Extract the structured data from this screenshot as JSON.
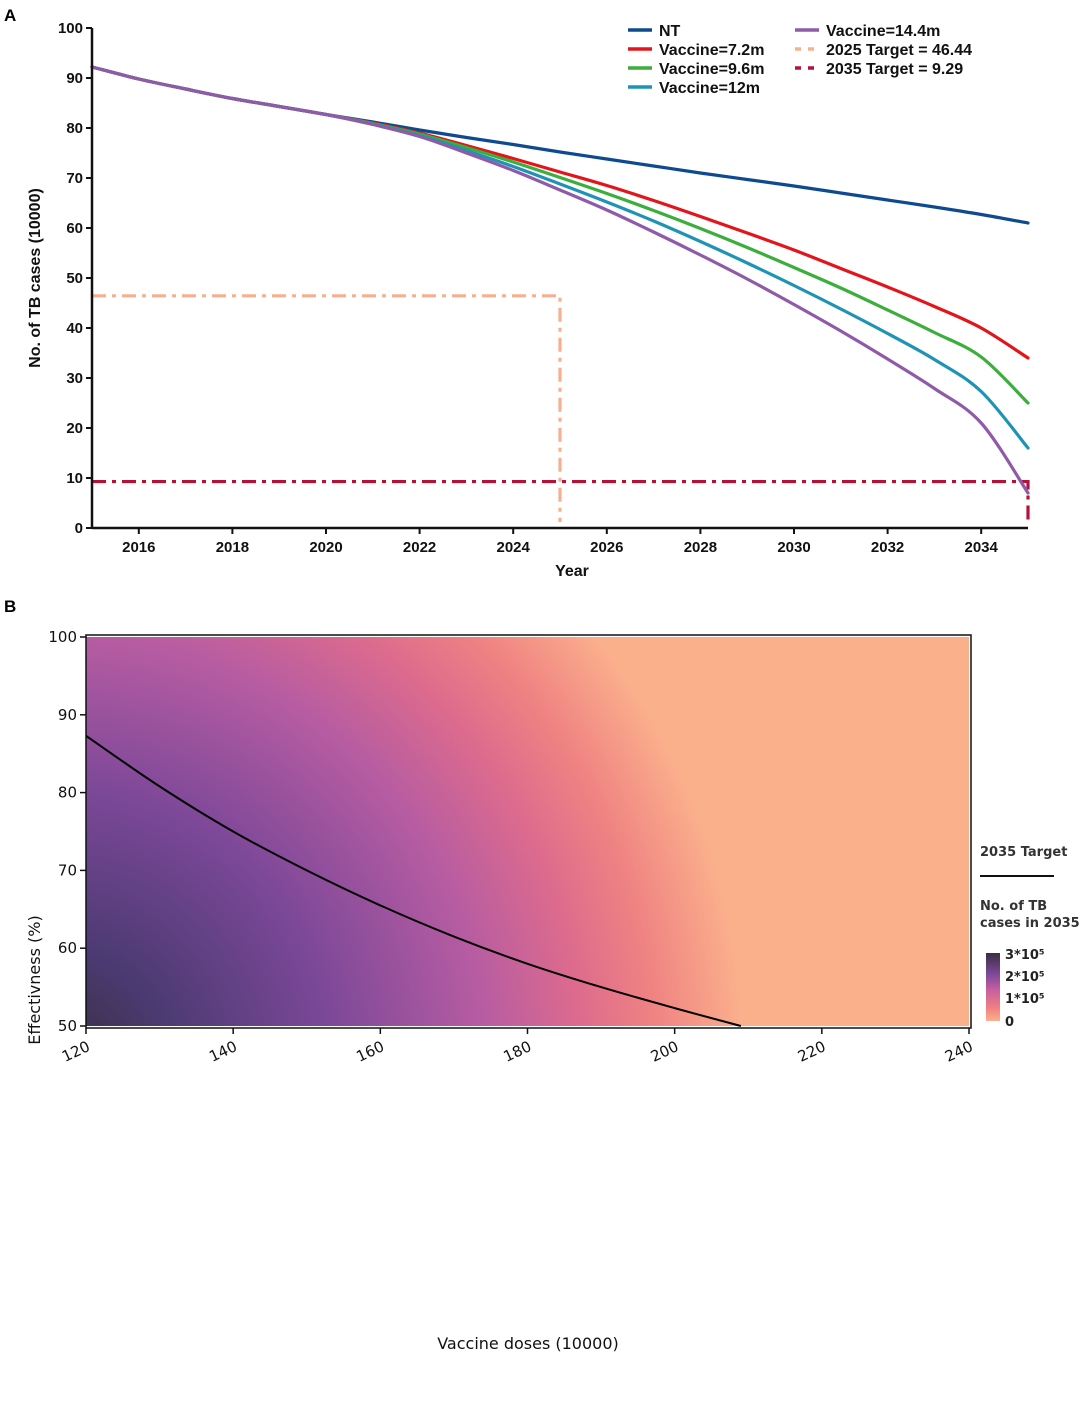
{
  "panels": {
    "a_label": "A",
    "b_label": "B"
  },
  "colors": {
    "NT": "#0d4a8f",
    "v72": "#e3151b",
    "v96": "#3bae3c",
    "v12": "#1f93b5",
    "v144": "#8f5aa8",
    "t2025": "#f7b08f",
    "t2035": "#b5123a",
    "heat_low": "#fbb08c",
    "heat_mid1": "#ec7e82",
    "heat_mid2": "#b45aa3",
    "heat_mid3": "#7b4797",
    "heat_high": "#3a2f3f"
  },
  "chart_data": [
    {
      "type": "line",
      "xlabel": "Year",
      "ylabel": "No. of TB cases (10000)",
      "xlim": [
        2015,
        2035
      ],
      "ylim": [
        0,
        100
      ],
      "xticks": [
        2016,
        2018,
        2020,
        2022,
        2024,
        2026,
        2028,
        2030,
        2032,
        2034
      ],
      "yticks": [
        0,
        10,
        20,
        30,
        40,
        50,
        60,
        70,
        80,
        90,
        100
      ],
      "x": [
        2015,
        2016,
        2017,
        2018,
        2019,
        2020,
        2021,
        2022,
        2023,
        2024,
        2025,
        2026,
        2027,
        2028,
        2029,
        2030,
        2031,
        2032,
        2033,
        2034,
        2035
      ],
      "series": [
        {
          "name": "NT",
          "color_key": "NT",
          "values": [
            92.2,
            89.8,
            87.8,
            85.9,
            84.3,
            82.7,
            81.2,
            79.6,
            78.1,
            76.7,
            75.2,
            73.8,
            72.4,
            71.0,
            69.7,
            68.4,
            67.0,
            65.6,
            64.2,
            62.7,
            61.0
          ]
        },
        {
          "name": "Vaccine=7.2m",
          "color_key": "v72",
          "values": [
            92.2,
            89.8,
            87.8,
            85.9,
            84.3,
            82.7,
            81.0,
            79.0,
            76.5,
            73.9,
            71.2,
            68.5,
            65.5,
            62.3,
            59.0,
            55.6,
            51.9,
            48.2,
            44.3,
            40.0,
            34.0
          ]
        },
        {
          "name": "Vaccine=9.6m",
          "color_key": "v96",
          "values": [
            92.2,
            89.8,
            87.8,
            85.9,
            84.3,
            82.7,
            80.9,
            78.8,
            76.1,
            73.2,
            70.1,
            66.9,
            63.5,
            59.9,
            56.1,
            52.1,
            48.0,
            43.6,
            39.1,
            34.2,
            25.0
          ]
        },
        {
          "name": "Vaccine=12m",
          "color_key": "v12",
          "values": [
            92.2,
            89.8,
            87.8,
            85.9,
            84.3,
            82.7,
            80.8,
            78.5,
            75.5,
            72.3,
            68.8,
            65.2,
            61.4,
            57.3,
            53.0,
            48.5,
            43.8,
            38.9,
            33.7,
            27.3,
            16.0
          ]
        },
        {
          "name": "Vaccine=14.4m",
          "color_key": "v144",
          "values": [
            92.2,
            89.8,
            87.8,
            85.9,
            84.3,
            82.7,
            80.7,
            78.3,
            75.0,
            71.5,
            67.6,
            63.6,
            59.2,
            54.6,
            49.8,
            44.7,
            39.4,
            33.8,
            27.9,
            21.0,
            7.0
          ]
        }
      ],
      "targets": [
        {
          "name": "2025 Target = 46.44",
          "color_key": "t2025",
          "value": 46.44,
          "year": 2025,
          "dash": "dash-dot"
        },
        {
          "name": "2035 Target = 9.29",
          "color_key": "t2035",
          "value": 9.29,
          "year": 2035,
          "dash": "dash-dot"
        }
      ],
      "legend": {
        "placement": "top-right",
        "columns": [
          [
            "NT",
            "Vaccine=7.2m",
            "Vaccine=9.6m",
            "Vaccine=12m"
          ],
          [
            "Vaccine=14.4m",
            "2025 Target = 46.44",
            "2035 Target = 9.29"
          ]
        ]
      }
    },
    {
      "type": "heatmap",
      "xlabel": "Vaccine doses (10000)",
      "ylabel": "Effectivness (%)",
      "xlim": [
        120,
        240
      ],
      "ylim": [
        50,
        100
      ],
      "xticks": [
        120,
        140,
        160,
        180,
        200,
        220,
        240
      ],
      "yticks": [
        50,
        60,
        70,
        80,
        90,
        100
      ],
      "target_curve": {
        "name": "2035 Target",
        "points": [
          [
            120,
            87.3
          ],
          [
            130,
            80.8
          ],
          [
            140,
            75.0
          ],
          [
            150,
            70.0
          ],
          [
            160,
            65.5
          ],
          [
            170,
            61.5
          ],
          [
            180,
            58.0
          ],
          [
            190,
            55.0
          ],
          [
            200,
            52.3
          ],
          [
            209,
            50.0
          ]
        ]
      },
      "colorbar": {
        "title": "No. of TB cases in 2035",
        "ticks": [
          "3*10⁵",
          "2*10⁵",
          "1*10⁵",
          "0"
        ]
      },
      "legend_line_label": "2035 Target"
    }
  ]
}
